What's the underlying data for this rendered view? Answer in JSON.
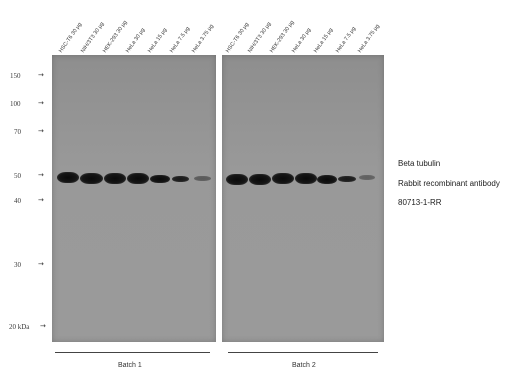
{
  "batch1": {
    "lanes": [
      "HSC-T6 30 µg",
      "NIH/3T3 30 µg",
      "HEK-293 30 µg",
      "HeLa 30 µg",
      "HeLa 15 µg",
      "HeLa 7.5 µg",
      "HeLa 3.75 µg"
    ],
    "label": "Batch 1"
  },
  "batch2": {
    "lanes": [
      "HSC-T6 30 µg",
      "NIH/3T3 30 µg",
      "HEK-293 30 µg",
      "HeLa 30 µg",
      "HeLa 15 µg",
      "HeLa 7.5 µg",
      "HeLa 3.75 µg"
    ],
    "label": "Batch 2"
  },
  "markers": [
    {
      "label": "150",
      "arrow": "→"
    },
    {
      "label": "100",
      "arrow": "→"
    },
    {
      "label": "70",
      "arrow": "→"
    },
    {
      "label": "50",
      "arrow": "→"
    },
    {
      "label": "40",
      "arrow": "→"
    },
    {
      "label": "30",
      "arrow": "→"
    },
    {
      "label": "20 kDa",
      "arrow": "→"
    }
  ],
  "antibody": {
    "line1": "Beta tubulin",
    "line2": "Rabbit recombinant antibody",
    "line3": "80713-1-RR"
  }
}
